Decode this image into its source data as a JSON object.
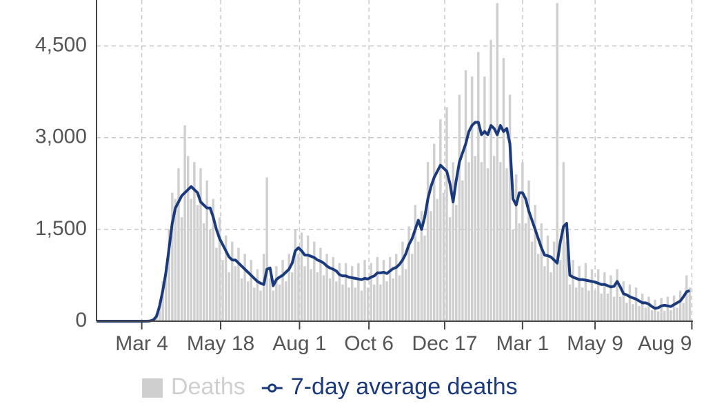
{
  "chart_data": {
    "type": "bar_line",
    "x": [
      -43,
      -40,
      -37,
      -34,
      -31,
      -28,
      -25,
      -22,
      -19,
      -16,
      -13,
      -10,
      -7,
      -4,
      -1,
      2,
      5,
      8,
      11,
      14,
      17,
      20,
      23,
      26,
      29,
      32,
      35,
      38,
      41,
      44,
      47,
      50,
      53,
      56,
      59,
      62,
      65,
      68,
      71,
      74,
      77,
      80,
      83,
      86,
      89,
      92,
      95,
      98,
      101,
      104,
      107,
      110,
      113,
      116,
      119,
      122,
      125,
      128,
      131,
      134,
      137,
      140,
      143,
      146,
      149,
      152,
      155,
      158,
      161,
      164,
      167,
      170,
      173,
      176,
      179,
      182,
      185,
      188,
      191,
      194,
      197,
      200,
      203,
      206,
      209,
      212,
      215,
      218,
      221,
      224,
      227,
      230,
      233,
      236,
      239,
      242,
      245,
      248,
      251,
      254,
      257,
      260,
      263,
      266,
      269,
      272,
      275,
      278,
      281,
      284,
      287,
      290,
      293,
      296,
      299,
      302,
      305,
      308,
      311,
      314,
      317,
      320,
      323,
      326,
      329,
      332,
      335,
      338,
      341,
      344,
      347,
      350,
      353,
      356,
      359,
      362,
      365,
      368,
      371,
      374,
      377,
      380,
      383,
      386,
      389,
      392,
      395,
      398,
      401,
      404,
      407,
      410,
      413,
      416,
      419,
      422,
      425,
      428,
      431,
      434,
      437,
      440,
      443,
      446,
      449,
      452,
      455,
      458,
      461,
      464,
      467,
      470,
      473,
      476,
      479,
      482,
      485,
      488,
      491,
      494,
      497,
      500,
      503,
      506,
      509,
      512,
      515,
      518,
      521
    ],
    "series": [
      {
        "name": "Deaths",
        "kind": "bar",
        "color": "#cfcfcf",
        "values": [
          0,
          0,
          0,
          0,
          0,
          0,
          0,
          0,
          0,
          0,
          0,
          0,
          0,
          0,
          0,
          0,
          0,
          10,
          40,
          120,
          300,
          650,
          900,
          1500,
          2100,
          2000,
          2500,
          1700,
          3200,
          2700,
          2000,
          2600,
          1900,
          2500,
          1600,
          2300,
          1500,
          2000,
          1200,
          1700,
          1000,
          1400,
          800,
          1300,
          900,
          1200,
          700,
          1100,
          650,
          1000,
          550,
          850,
          500,
          1100,
          2350,
          700,
          500,
          900,
          600,
          1000,
          650,
          1100,
          800,
          1500,
          1100,
          1450,
          900,
          1400,
          850,
          1300,
          800,
          1200,
          750,
          1100,
          700,
          1050,
          650,
          950,
          600,
          950,
          550,
          900,
          550,
          950,
          500,
          1000,
          550,
          950,
          600,
          1050,
          600,
          1000,
          650,
          1050,
          700,
          1100,
          750,
          1300,
          850,
          1550,
          1100,
          1900,
          1300,
          1800,
          1400,
          2600,
          1800,
          2900,
          2000,
          3300,
          2100,
          3500,
          1700,
          2600,
          1900,
          3700,
          2300,
          4100,
          2600,
          4000,
          2700,
          4400,
          2600,
          4000,
          2500,
          4600,
          2700,
          5200,
          2600,
          4300,
          2500,
          3700,
          1500,
          2400,
          1600,
          2600,
          1600,
          2300,
          1300,
          1900,
          1100,
          1600,
          900,
          1400,
          800,
          1300,
          5200,
          1000,
          2600,
          1300,
          600,
          1000,
          550,
          900,
          550,
          950,
          500,
          850,
          500,
          850,
          450,
          800,
          450,
          750,
          400,
          850,
          400,
          650,
          300,
          600,
          280,
          550,
          250,
          450,
          220,
          400,
          180,
          350,
          160,
          380,
          170,
          400,
          180,
          420,
          220,
          500,
          300,
          750,
          550
        ]
      },
      {
        "name": "7-day average deaths",
        "kind": "line",
        "color": "#1b3a7c",
        "values": [
          0,
          0,
          0,
          0,
          0,
          0,
          0,
          0,
          0,
          0,
          0,
          0,
          0,
          0,
          0,
          0,
          0,
          5,
          20,
          80,
          250,
          500,
          800,
          1200,
          1600,
          1850,
          1950,
          2050,
          2100,
          2150,
          2200,
          2150,
          2100,
          1950,
          1900,
          1850,
          1850,
          1700,
          1500,
          1350,
          1250,
          1150,
          1050,
          1000,
          1000,
          950,
          900,
          850,
          800,
          750,
          700,
          650,
          620,
          600,
          850,
          870,
          580,
          680,
          720,
          750,
          800,
          850,
          950,
          1150,
          1200,
          1150,
          1080,
          1080,
          1060,
          1040,
          1000,
          980,
          950,
          900,
          870,
          850,
          820,
          760,
          740,
          740,
          720,
          710,
          700,
          690,
          680,
          700,
          690,
          720,
          740,
          790,
          790,
          800,
          780,
          820,
          860,
          880,
          930,
          1000,
          1100,
          1250,
          1350,
          1500,
          1650,
          1500,
          1700,
          2000,
          2200,
          2350,
          2450,
          2550,
          2500,
          2450,
          2250,
          1950,
          2300,
          2600,
          2750,
          2900,
          3100,
          3200,
          3250,
          3250,
          3050,
          3100,
          3050,
          3200,
          3150,
          3050,
          3200,
          3100,
          3150,
          2900,
          2000,
          1900,
          2100,
          2100,
          2000,
          1800,
          1650,
          1500,
          1350,
          1200,
          1080,
          1070,
          1050,
          1000,
          950,
          1300,
          1550,
          1600,
          750,
          720,
          700,
          680,
          680,
          670,
          660,
          650,
          640,
          620,
          600,
          600,
          580,
          560,
          570,
          650,
          560,
          450,
          430,
          400,
          380,
          360,
          330,
          300,
          300,
          280,
          240,
          210,
          220,
          250,
          260,
          250,
          240,
          270,
          300,
          330,
          400,
          480,
          500
        ]
      }
    ],
    "xlim": [
      -43,
      524
    ],
    "xticks": [
      {
        "value": 0,
        "label": "Mar 4"
      },
      {
        "value": 75,
        "label": "May 18"
      },
      {
        "value": 150,
        "label": "Aug 1"
      },
      {
        "value": 216,
        "label": "Oct 6"
      },
      {
        "value": 288,
        "label": "Dec 17"
      },
      {
        "value": 362,
        "label": "Mar 1"
      },
      {
        "value": 431,
        "label": "May 9"
      },
      {
        "value": 523,
        "label": "Aug 9"
      }
    ],
    "ylim": [
      0,
      5250
    ],
    "yticks": [
      0,
      {
        "value": 1500,
        "label": "1,500"
      },
      {
        "value": 3000,
        "label": "3,000"
      },
      {
        "value": 4500,
        "label": "4,500"
      }
    ],
    "grid": true
  }
}
